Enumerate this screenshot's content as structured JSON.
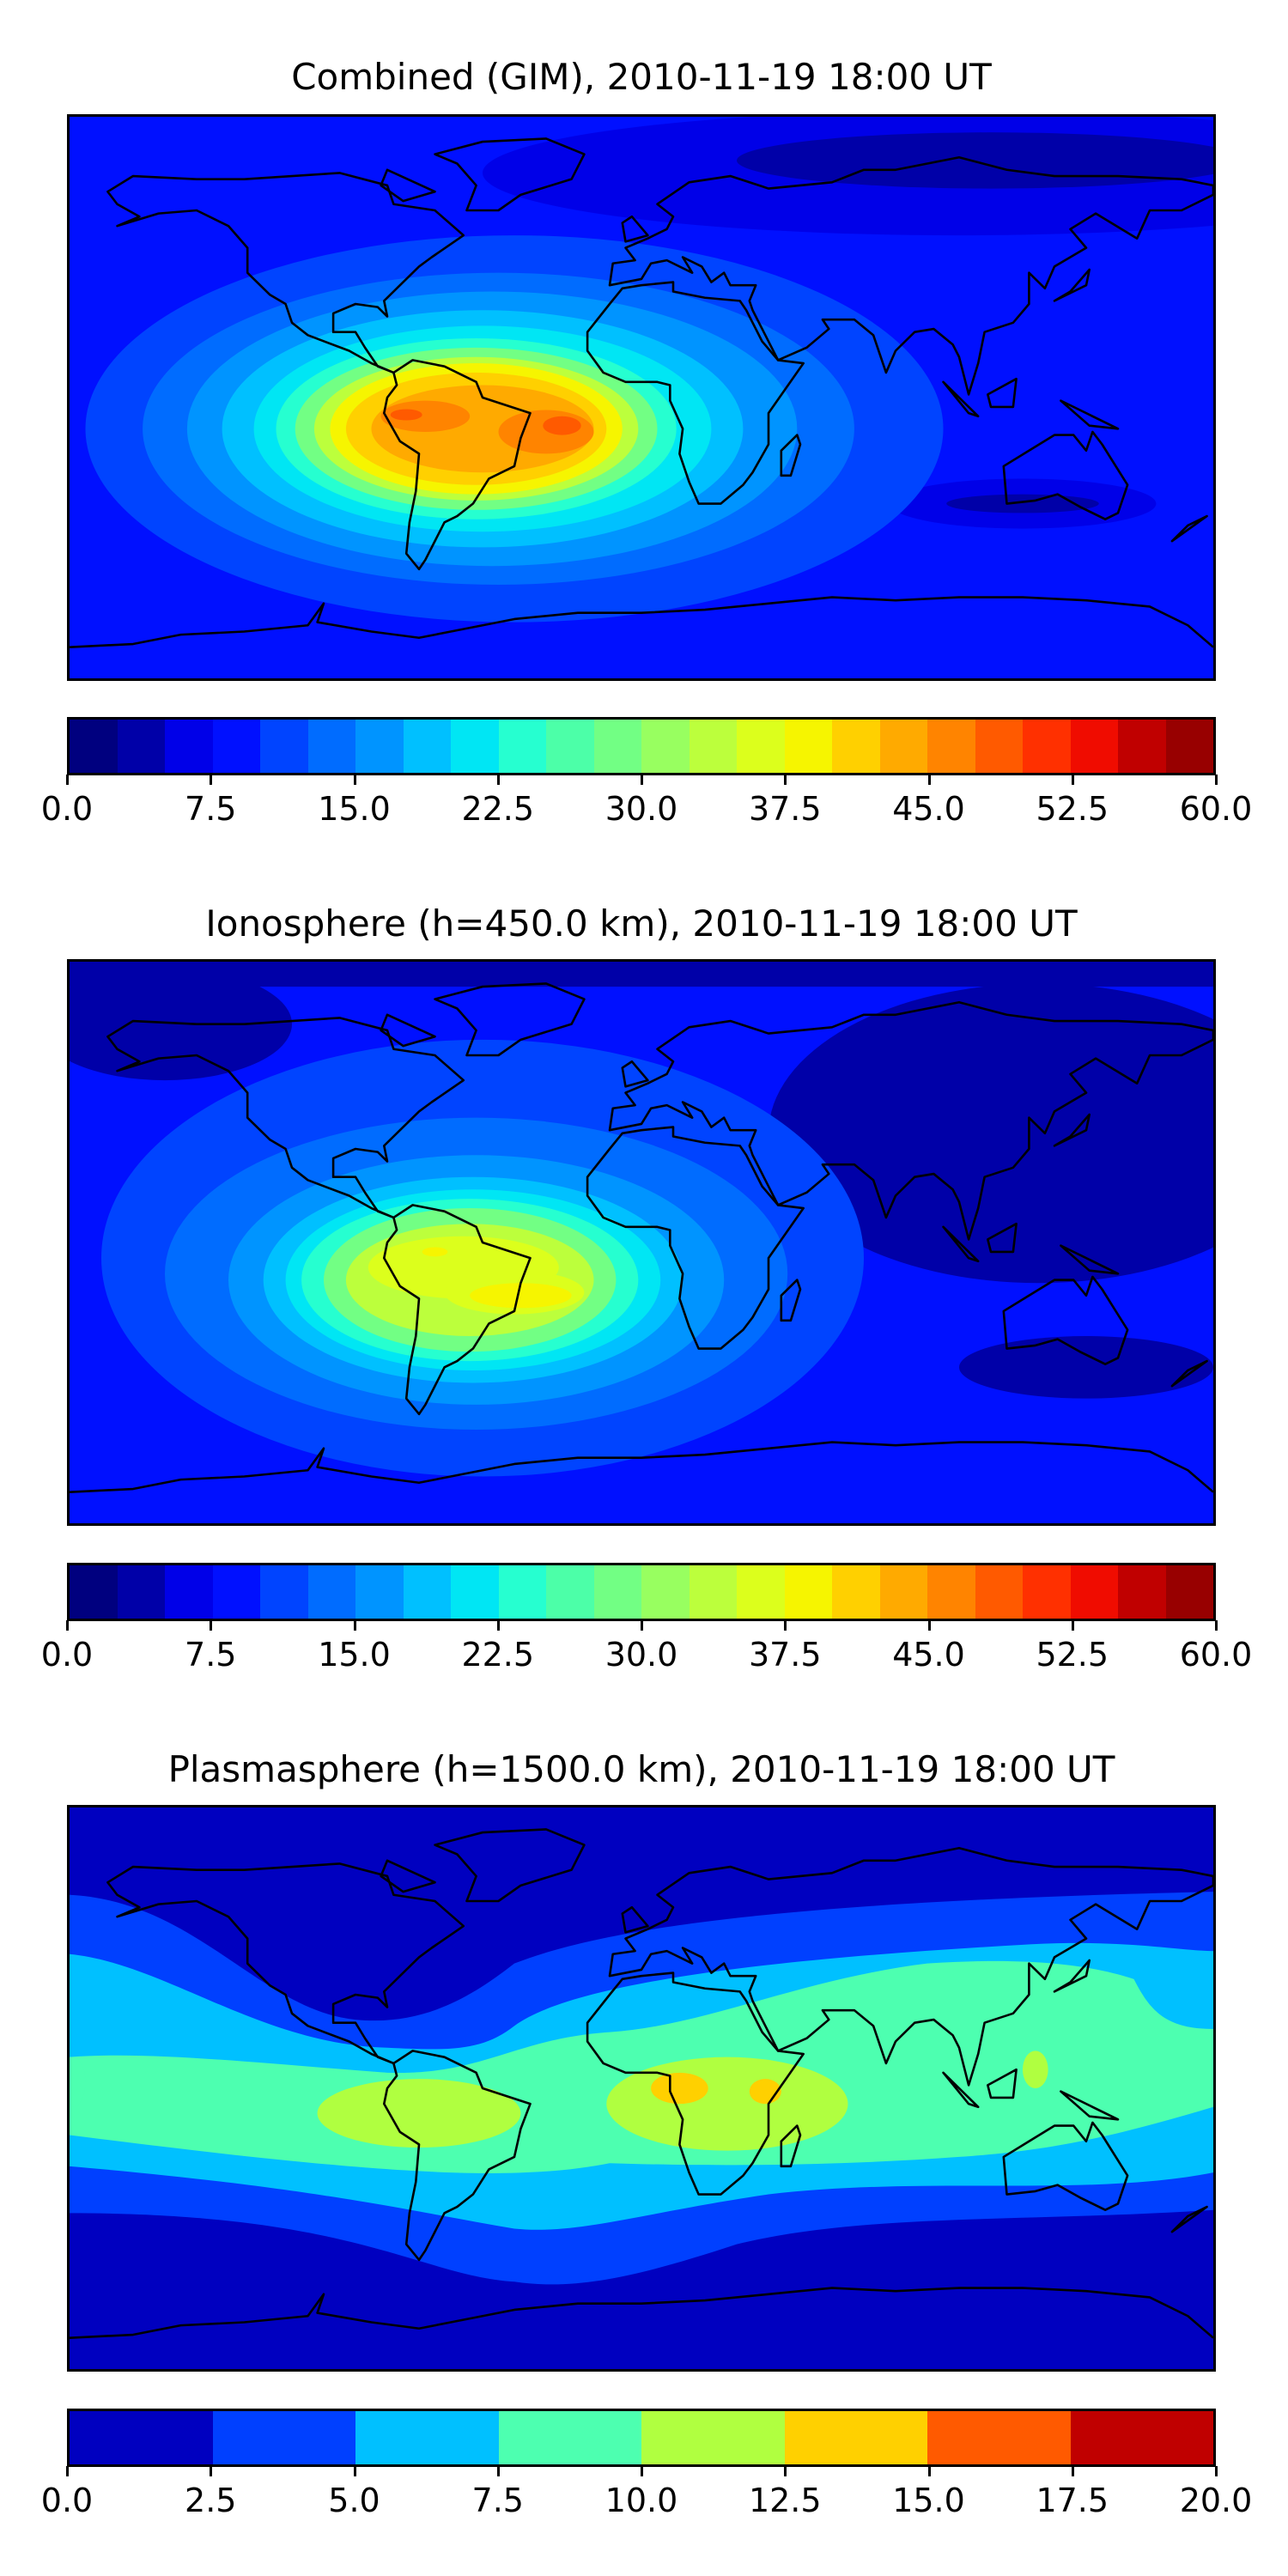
{
  "chart_data": [
    {
      "type": "heatmap",
      "title": "Combined (GIM), 2010-11-19 18:00 UT",
      "projection": "plate carree, global",
      "colorbar": {
        "range": [
          0,
          60
        ],
        "step": 2.5,
        "ticks": [
          "0.0",
          "7.5",
          "15.0",
          "22.5",
          "30.0",
          "37.5",
          "45.0",
          "52.5",
          "60.0"
        ],
        "colors": [
          "#00007f",
          "#0000a8",
          "#0000e8",
          "#0010ff",
          "#0044ff",
          "#006cff",
          "#0094ff",
          "#00c0ff",
          "#00e6f4",
          "#26ffd0",
          "#4cffa8",
          "#72ff84",
          "#98ff60",
          "#bcff3c",
          "#dcff1c",
          "#f6f500",
          "#ffd000",
          "#ffaa00",
          "#ff8400",
          "#ff5a00",
          "#ff3000",
          "#f00c00",
          "#c00000",
          "#980000"
        ]
      },
      "peak_region": "South America / South Atlantic, max approx 50"
    },
    {
      "type": "heatmap",
      "title": "Ionosphere  (h=450.0 km), 2010-11-19 18:00 UT",
      "projection": "plate carree, global",
      "colorbar": {
        "range": [
          0,
          60
        ],
        "step": 2.5,
        "ticks": [
          "0.0",
          "7.5",
          "15.0",
          "22.5",
          "30.0",
          "37.5",
          "45.0",
          "52.5",
          "60.0"
        ],
        "colors": [
          "#00007f",
          "#0000a8",
          "#0000e8",
          "#0010ff",
          "#0044ff",
          "#006cff",
          "#0094ff",
          "#00c0ff",
          "#00e6f4",
          "#26ffd0",
          "#4cffa8",
          "#72ff84",
          "#98ff60",
          "#bcff3c",
          "#dcff1c",
          "#f6f500",
          "#ffd000",
          "#ffaa00",
          "#ff8400",
          "#ff5a00",
          "#ff3000",
          "#f00c00",
          "#c00000",
          "#980000"
        ]
      },
      "peak_region": "South America, max approx 40"
    },
    {
      "type": "heatmap",
      "title": "Plasmasphere (h=1500.0 km), 2010-11-19 18:00 UT",
      "projection": "plate carree, global",
      "colorbar": {
        "range": [
          0,
          20
        ],
        "step": 2.5,
        "ticks": [
          "0.0",
          "2.5",
          "5.0",
          "7.5",
          "10.0",
          "12.5",
          "15.0",
          "17.5",
          "20.0"
        ],
        "colors": [
          "#0000c0",
          "#0040ff",
          "#00c0ff",
          "#4dffb0",
          "#b0ff40",
          "#ffd000",
          "#ff5a00",
          "#c00000"
        ]
      },
      "peak_region": "Equatorial Africa, max approx 15"
    }
  ]
}
